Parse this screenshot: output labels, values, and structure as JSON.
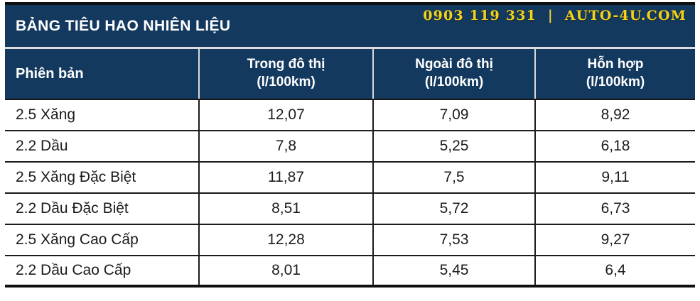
{
  "colors": {
    "navy": "#14395F",
    "gold": "#F2D31B",
    "border_black": "#161616",
    "divider_light": "#d9d9d9",
    "text_dark": "#1c1c1c",
    "white": "#ffffff"
  },
  "titlebar": {
    "title": "BẢNG TIÊU HAO NHIÊN LIỆU",
    "phone": "0903 119 331",
    "separator": "|",
    "website": "AUTO-4U.COM"
  },
  "header": {
    "version": "Phiên bản",
    "urban_label": "Trong đô thị",
    "urban_unit": "(l/100km)",
    "extra_urban_label": "Ngoài đô thị",
    "extra_urban_unit": "(l/100km)",
    "combined_label": "Hỗn hợp",
    "combined_unit": "(l/100km)"
  },
  "chart_data": {
    "type": "table",
    "title": "BẢNG TIÊU HAO NHIÊN LIỆU",
    "columns": [
      "Phiên bản",
      "Trong đô thị (l/100km)",
      "Ngoài đô thị (l/100km)",
      "Hỗn hợp (l/100km)"
    ],
    "rows": [
      [
        "2.5 Xăng",
        "12,07",
        "7,09",
        "8,92"
      ],
      [
        "2.2 Dầu",
        "7,8",
        "5,25",
        "6,18"
      ],
      [
        "2.5 Xăng Đặc Biệt",
        "11,87",
        "7,5",
        "9,11"
      ],
      [
        "2.2 Dầu Đặc Biệt",
        "8,51",
        "5,72",
        "6,73"
      ],
      [
        "2.5 Xăng Cao Cấp",
        "12,28",
        "7,53",
        "9,27"
      ],
      [
        "2.2 Dầu Cao Cấp",
        "8,01",
        "5,45",
        "6,4"
      ]
    ],
    "unit": "l/100km",
    "values_numeric": {
      "urban": [
        12.07,
        7.8,
        11.87,
        8.51,
        12.28,
        8.01
      ],
      "extra_urban": [
        7.09,
        5.25,
        7.5,
        5.72,
        7.53,
        5.45
      ],
      "combined": [
        8.92,
        6.18,
        9.11,
        6.73,
        9.27,
        6.4
      ]
    }
  }
}
